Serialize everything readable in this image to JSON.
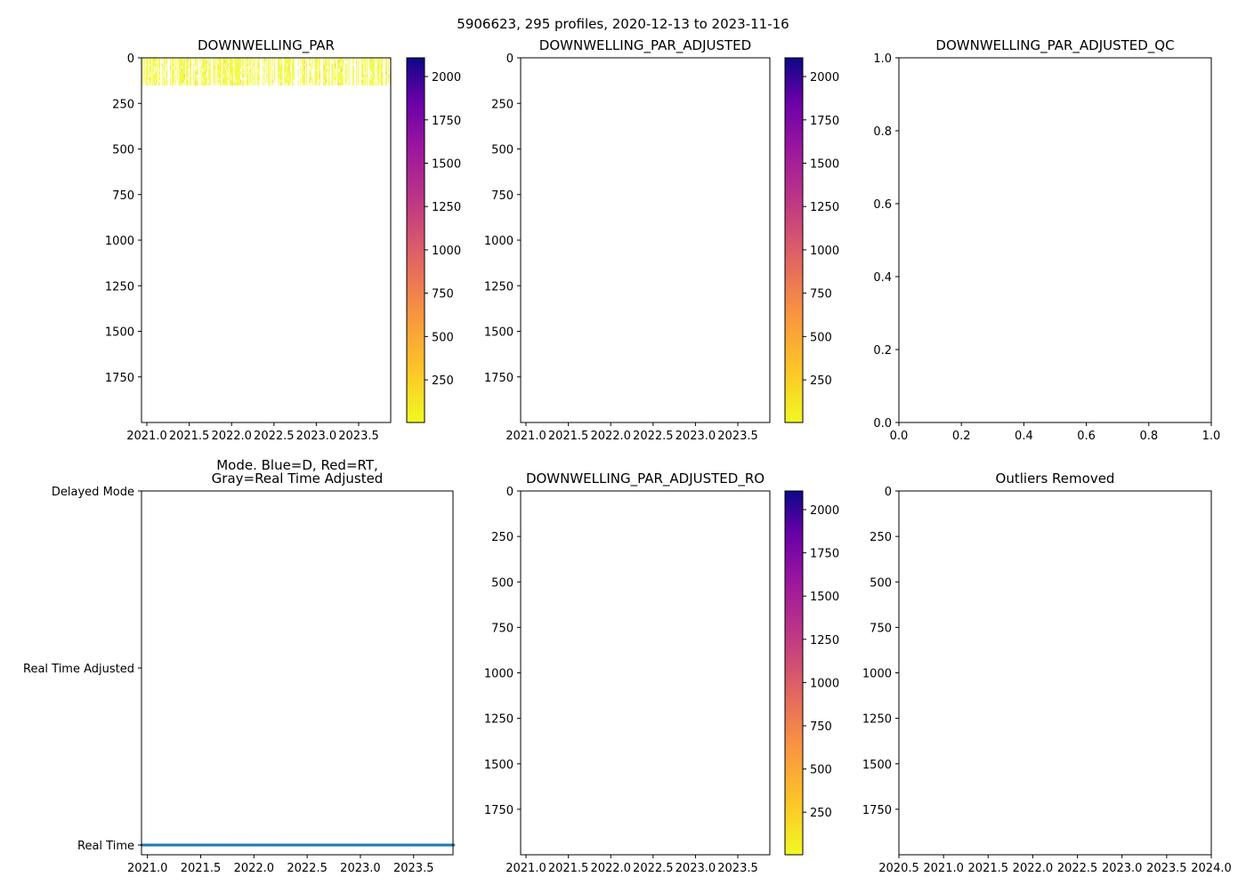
{
  "suptitle": "5906623, 295 profiles, 2020-12-13 to 2023-11-16",
  "chart_data": [
    {
      "id": "par",
      "type": "heatmap",
      "title": "DOWNWELLING_PAR",
      "xlim": [
        2020.937,
        2023.878
      ],
      "ylim": [
        2000,
        0
      ],
      "xticks": [
        2021.0,
        2021.5,
        2022.0,
        2022.5,
        2023.0,
        2023.5
      ],
      "xtick_labels": [
        "2021.0",
        "2021.5",
        "2022.0",
        "2022.5",
        "2023.0",
        "2023.5"
      ],
      "yticks": [
        0,
        250,
        500,
        750,
        1000,
        1250,
        1500,
        1750
      ],
      "ytick_labels": [
        "0",
        "250",
        "500",
        "750",
        "1000",
        "1250",
        "1500",
        "1750"
      ],
      "n_profiles": 295,
      "data_depth_range": [
        0,
        150
      ],
      "data_value_approx": 20,
      "colorbar": {
        "cmap": "plasma_r",
        "range": [
          4,
          2108
        ],
        "ticks": [
          250,
          500,
          750,
          1000,
          1250,
          1500,
          1750,
          2000
        ],
        "tick_labels": [
          "250",
          "500",
          "750",
          "1000",
          "1250",
          "1500",
          "1750",
          "2000"
        ]
      }
    },
    {
      "id": "par_adj",
      "type": "heatmap",
      "title": "DOWNWELLING_PAR_ADJUSTED",
      "xlim": [
        2020.937,
        2023.878
      ],
      "ylim": [
        2000,
        0
      ],
      "xticks": [
        2021.0,
        2021.5,
        2022.0,
        2022.5,
        2023.0,
        2023.5
      ],
      "xtick_labels": [
        "2021.0",
        "2021.5",
        "2022.0",
        "2022.5",
        "2023.0",
        "2023.5"
      ],
      "yticks": [
        0,
        250,
        500,
        750,
        1000,
        1250,
        1500,
        1750
      ],
      "ytick_labels": [
        "0",
        "250",
        "500",
        "750",
        "1000",
        "1250",
        "1500",
        "1750"
      ],
      "colorbar": {
        "cmap": "plasma_r",
        "range": [
          4,
          2108
        ],
        "ticks": [
          250,
          500,
          750,
          1000,
          1250,
          1500,
          1750,
          2000
        ],
        "tick_labels": [
          "250",
          "500",
          "750",
          "1000",
          "1250",
          "1500",
          "1750",
          "2000"
        ]
      }
    },
    {
      "id": "par_qc",
      "type": "scatter",
      "title": "DOWNWELLING_PAR_ADJUSTED_QC",
      "xlim": [
        0,
        1
      ],
      "ylim": [
        0,
        1
      ],
      "xticks": [
        0,
        0.2,
        0.4,
        0.6,
        0.8,
        1.0
      ],
      "xtick_labels": [
        "0.0",
        "0.2",
        "0.4",
        "0.6",
        "0.8",
        "1.0"
      ],
      "yticks": [
        0,
        0.2,
        0.4,
        0.6,
        0.8,
        1.0
      ],
      "ytick_labels": [
        "0.0",
        "0.2",
        "0.4",
        "0.6",
        "0.8",
        "1.0"
      ]
    },
    {
      "id": "mode",
      "type": "scatter",
      "title": "Mode. Blue=D, Red=RT,",
      "title2": "Gray=Real Time Adjusted",
      "xlim": [
        2020.944,
        2023.87
      ],
      "ylim": [
        -0.055,
        2
      ],
      "xticks": [
        2021.0,
        2021.5,
        2022.0,
        2022.5,
        2023.0,
        2023.5
      ],
      "xtick_labels": [
        "2021.0",
        "2021.5",
        "2022.0",
        "2022.5",
        "2023.0",
        "2023.5"
      ],
      "yticks": [
        0,
        1,
        2
      ],
      "ytick_labels": [
        "Real Time",
        "Real Time Adjusted",
        "Delayed Mode"
      ],
      "series": [
        {
          "name": "Real Time",
          "y": 0,
          "x_range": [
            2020.95,
            2023.875
          ],
          "count": 295,
          "color": "#1f77b4"
        }
      ]
    },
    {
      "id": "par_ro",
      "type": "heatmap",
      "title": "DOWNWELLING_PAR_ADJUSTED_RO",
      "xlim": [
        2020.937,
        2023.878
      ],
      "ylim": [
        2000,
        0
      ],
      "xticks": [
        2021.0,
        2021.5,
        2022.0,
        2022.5,
        2023.0,
        2023.5
      ],
      "xtick_labels": [
        "2021.0",
        "2021.5",
        "2022.0",
        "2022.5",
        "2023.0",
        "2023.5"
      ],
      "yticks": [
        0,
        250,
        500,
        750,
        1000,
        1250,
        1500,
        1750
      ],
      "ytick_labels": [
        "0",
        "250",
        "500",
        "750",
        "1000",
        "1250",
        "1500",
        "1750"
      ],
      "colorbar": {
        "cmap": "plasma_r",
        "range": [
          4,
          2108
        ],
        "ticks": [
          250,
          500,
          750,
          1000,
          1250,
          1500,
          1750,
          2000
        ],
        "tick_labels": [
          "250",
          "500",
          "750",
          "1000",
          "1250",
          "1500",
          "1750",
          "2000"
        ]
      }
    },
    {
      "id": "outliers",
      "type": "scatter",
      "title": "Outliers Removed",
      "xlim": [
        2020.5,
        2024.0
      ],
      "ylim": [
        2000,
        0
      ],
      "xticks": [
        2020.5,
        2021.0,
        2021.5,
        2022.0,
        2022.5,
        2023.0,
        2023.5,
        2024.0
      ],
      "xtick_labels": [
        "2020.5",
        "2021.0",
        "2021.5",
        "2022.0",
        "2022.5",
        "2023.0",
        "2023.5",
        "2024.0"
      ],
      "yticks": [
        0,
        250,
        500,
        750,
        1000,
        1250,
        1500,
        1750
      ],
      "ytick_labels": [
        "0",
        "250",
        "500",
        "750",
        "1000",
        "1250",
        "1500",
        "1750"
      ]
    }
  ]
}
